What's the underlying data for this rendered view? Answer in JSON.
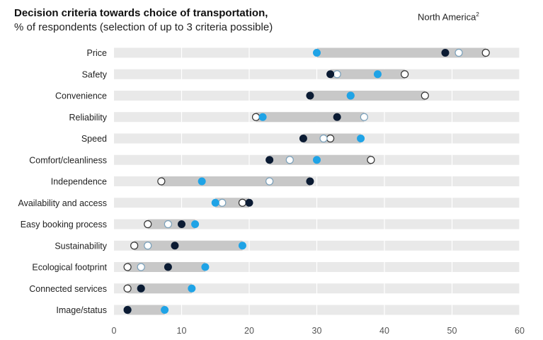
{
  "header": {
    "title": "Decision criteria towards choice of transportation,",
    "subtitle": "% of respondents (selection of up to 3 criteria possible)",
    "region": "North America",
    "region_footnote": "2"
  },
  "chart_data": {
    "type": "dot-range",
    "title": "Decision criteria towards choice of transportation,",
    "subtitle": "% of respondents (selection of up to 3 criteria possible)",
    "xlim": [
      0,
      60
    ],
    "xticks": [
      "0",
      "10",
      "20",
      "30",
      "40",
      "50",
      "60"
    ],
    "grid": true,
    "colors": {
      "blue_filled": "#1fa3e6",
      "navy_filled": "#0b1b33",
      "light_open_stroke": "#7aa0ba",
      "open_stroke": "#333333",
      "range_bar": "#c8c8c8",
      "row_band": "#e9e9e9"
    },
    "categories": [
      "Price",
      "Safety",
      "Convenience",
      "Reliability",
      "Speed",
      "Comfort/cleanliness",
      "Independence",
      "Availability and access",
      "Easy booking process",
      "Sustainability",
      "Ecological footprint",
      "Connected services",
      "Image/status"
    ],
    "series": [
      {
        "style": "navy-filled",
        "values": [
          49,
          32,
          29,
          33,
          28,
          23,
          29,
          20,
          10,
          9,
          8,
          4,
          2
        ]
      },
      {
        "style": "blue-filled",
        "values": [
          30,
          39,
          35,
          22,
          36.5,
          30,
          13,
          15,
          12,
          19,
          13.5,
          11.5,
          7.5
        ]
      },
      {
        "style": "light-open",
        "values": [
          51,
          33,
          35,
          37,
          31,
          26,
          23,
          16,
          8,
          5,
          4,
          4,
          2
        ]
      },
      {
        "style": "dark-open",
        "values": [
          55,
          43,
          46,
          21,
          32,
          38,
          7,
          19,
          5,
          3,
          2,
          2,
          2
        ]
      }
    ]
  }
}
